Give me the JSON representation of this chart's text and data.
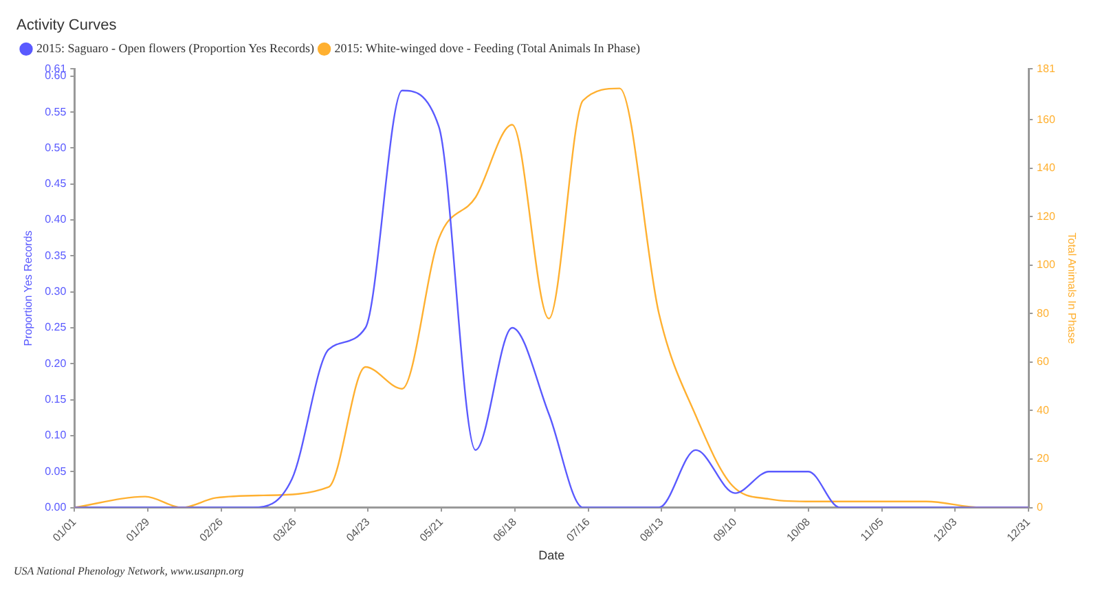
{
  "chart_data": {
    "type": "line",
    "title": "Activity Curves",
    "xlabel": "Date",
    "ylabel": "Proportion Yes Records",
    "y2label": "Total Animals In Phase",
    "legend": "top left",
    "grid": false,
    "marker": "none",
    "line_style": "solid",
    "xlim": [
      "--01-01",
      "--12-31"
    ],
    "xticks": [
      {
        "value": "--01-01",
        "label": "01/01"
      },
      {
        "value": "--01-29",
        "label": "01/29"
      },
      {
        "value": "--02-26",
        "label": "02/26"
      },
      {
        "value": "--03-26",
        "label": "03/26"
      },
      {
        "value": "--04-23",
        "label": "04/23"
      },
      {
        "value": "--05-21",
        "label": "05/21"
      },
      {
        "value": "--06-18",
        "label": "06/18"
      },
      {
        "value": "--07-16",
        "label": "07/16"
      },
      {
        "value": "--08-13",
        "label": "08/13"
      },
      {
        "value": "--09-10",
        "label": "09/10"
      },
      {
        "value": "--10-08",
        "label": "10/08"
      },
      {
        "value": "--11-05",
        "label": "11/05"
      },
      {
        "value": "--12-03",
        "label": "12/03"
      },
      {
        "value": "--12-31",
        "label": "12/31"
      }
    ],
    "ylim": [
      0,
      0.61
    ],
    "yticks": [
      {
        "value": 0,
        "label": "0.00"
      },
      {
        "value": 0.05,
        "label": "0.05"
      },
      {
        "value": 0.1,
        "label": "0.10"
      },
      {
        "value": 0.15,
        "label": "0.15"
      },
      {
        "value": 0.2,
        "label": "0.20"
      },
      {
        "value": 0.25,
        "label": "0.25"
      },
      {
        "value": 0.3,
        "label": "0.30"
      },
      {
        "value": 0.35,
        "label": "0.35"
      },
      {
        "value": 0.4,
        "label": "0.40"
      },
      {
        "value": 0.45,
        "label": "0.45"
      },
      {
        "value": 0.5,
        "label": "0.50"
      },
      {
        "value": 0.55,
        "label": "0.55"
      },
      {
        "value": 0.6,
        "label": "0.60"
      },
      0.61
    ],
    "y2lim": [
      0,
      181
    ],
    "y2ticks": [
      0,
      20,
      40,
      60,
      80,
      100,
      120,
      140,
      160,
      181
    ],
    "series": [
      {
        "name": "2015: Saguaro - Open flowers (Proportion Yes Records)",
        "color": "#5a5aff",
        "x": [
          "--01-01",
          "--03-10",
          "--03-25",
          "--04-08",
          "--04-22",
          "--05-06",
          "--05-20",
          "--06-03",
          "--06-17",
          "--07-01",
          "--07-14",
          "--08-12",
          "--08-26",
          "--09-10",
          "--09-23",
          "--10-08",
          "--10-20",
          "--12-31"
        ],
        "values": [
          0,
          0,
          0.04,
          0.22,
          0.25,
          0.58,
          0.53,
          0.08,
          0.25,
          0.13,
          0,
          0,
          0.08,
          0.02,
          0.05,
          0.05,
          0,
          0
        ]
      },
      {
        "name": "2015: White-winged dove - Feeding (Total Animals In Phase)",
        "color": "#ffb030",
        "axis": "y2",
        "x": [
          "--01-01",
          "--01-28",
          "--02-11",
          "--02-24",
          "--03-14",
          "--04-08",
          "--04-22",
          "--05-06",
          "--05-20",
          "--06-03",
          "--06-17",
          "--07-01",
          "--07-14",
          "--07-28",
          "--08-12",
          "--08-26",
          "--09-09",
          "--09-23",
          "--10-07",
          "--11-22",
          "--12-13",
          "--12-31"
        ],
        "values": [
          0,
          4.5,
          0,
          4,
          5,
          8.5,
          58,
          49,
          111,
          128,
          158,
          78,
          168,
          173,
          80,
          38,
          9,
          3.5,
          2.5,
          2.5,
          0,
          0
        ]
      }
    ],
    "annotations": [
      "USA National Phenology Network, www.usanpn.org"
    ]
  }
}
